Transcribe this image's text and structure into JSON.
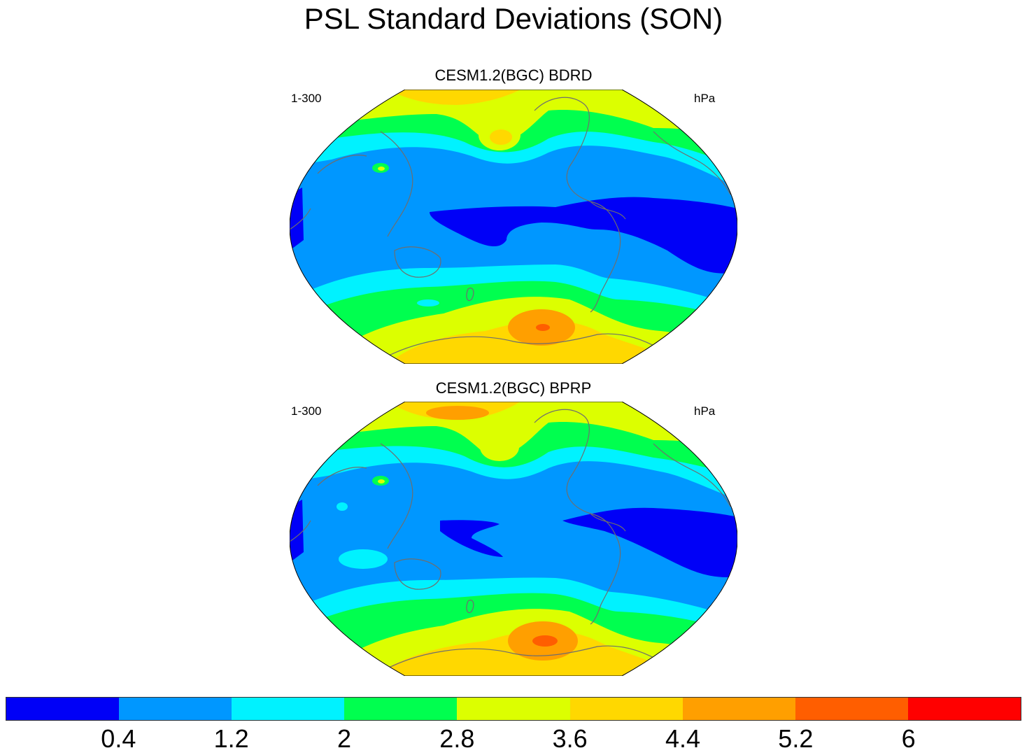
{
  "figure": {
    "title": "PSL Standard Deviations (SON)"
  },
  "panels": [
    {
      "center_string": "CESM1.2(BGC) BDRD",
      "left_string": "1-300",
      "right_string": "hPa"
    },
    {
      "center_string": "CESM1.2(BGC) BPRP",
      "left_string": "1-300",
      "right_string": "hPa"
    }
  ],
  "map": {
    "projection": "Robinson",
    "center_longitude": 180,
    "coastline_color": "#6e6e6e"
  },
  "colorbar": {
    "colors": [
      "#0000f7",
      "#0097ff",
      "#00f2ff",
      "#00ff4f",
      "#dcff00",
      "#ffd800",
      "#ff9f00",
      "#ff5e00",
      "#ff0000"
    ],
    "labels": [
      "0.4",
      "1.2",
      "2",
      "2.8",
      "3.6",
      "4.4",
      "5.2",
      "6"
    ]
  }
}
